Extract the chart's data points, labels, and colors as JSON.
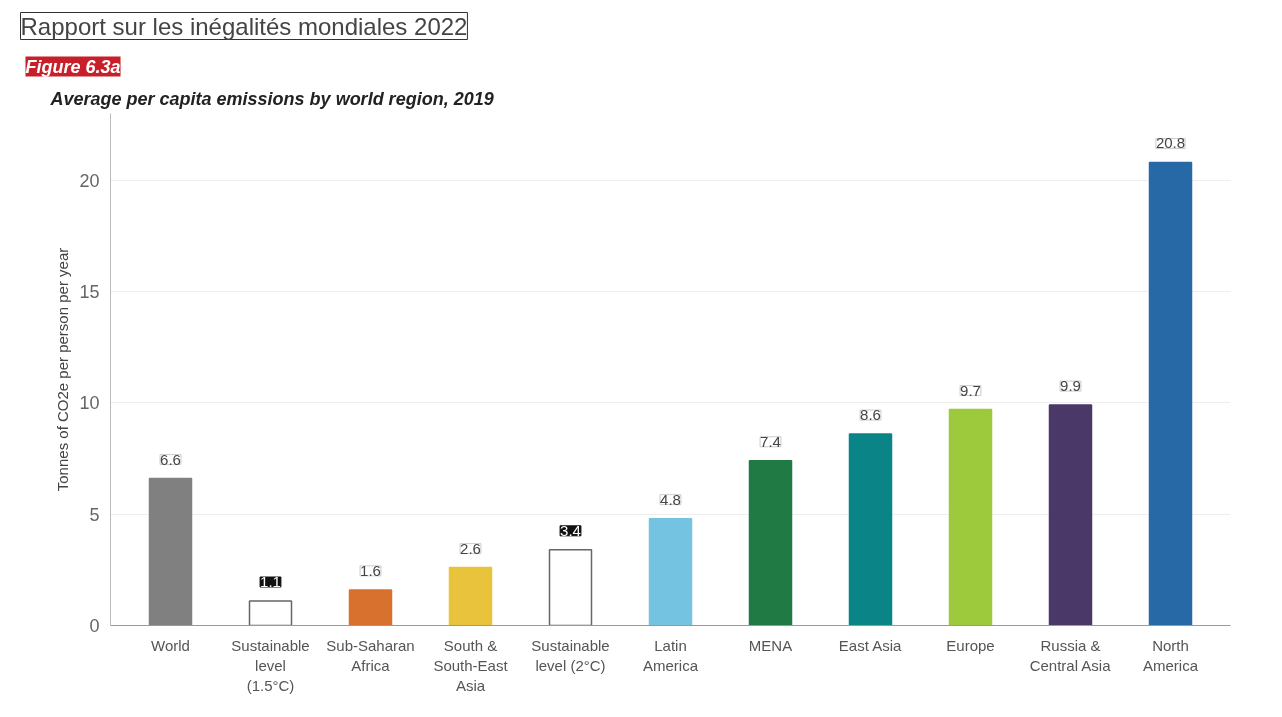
{
  "chart_data": {
    "type": "bar",
    "title": "Rapport sur les inégalités mondiales 2022",
    "subtitle": "Average per capita emissions by world region, 2019",
    "annotations": [
      "Figure 6.3a"
    ],
    "ylabel": "Tonnes of CO2e per person per year",
    "categories": [
      "World",
      "Sustainable level (1.5°C)",
      "Sub-Saharan Africa",
      "South & South-East Asia",
      "Sustainable level (2°C)",
      "Latin America",
      "MENA",
      "East Asia",
      "Europe",
      "Russia & Central Asia",
      "North America"
    ],
    "values": [
      6.6,
      1.1,
      1.6,
      2.6,
      3.4,
      4.8,
      7.4,
      8.6,
      9.7,
      9.9,
      20.8
    ],
    "colors": [
      "#808080",
      "#ffffff",
      "#d9712e",
      "#e8c33b",
      "#ffffff",
      "#74c3e0",
      "#1f7a44",
      "#0a8487",
      "#9dc93c",
      "#4a3868",
      "#2769a6"
    ],
    "ylim": [
      0,
      23
    ],
    "yticks": [
      0,
      5,
      10,
      15,
      20
    ],
    "grid": "y",
    "data_labels": true
  }
}
